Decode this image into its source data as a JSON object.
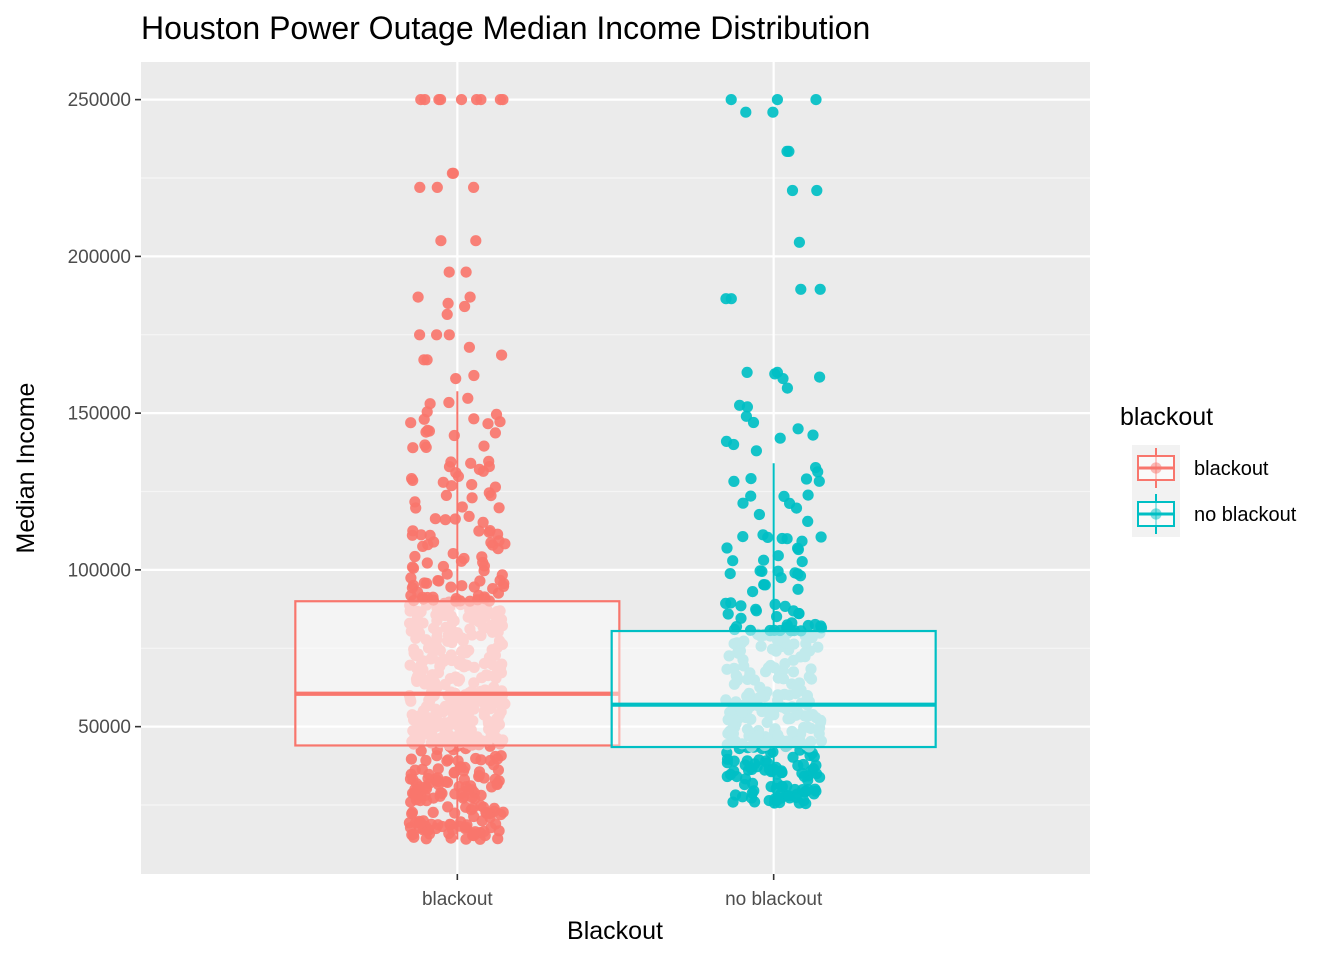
{
  "chart_data": {
    "type": "boxplot",
    "title": "Houston Power Outage Median Income Distribution",
    "xlabel": "Blackout",
    "ylabel": "Median Income",
    "ylim": [
      3000,
      262000
    ],
    "yticks": [
      50000,
      100000,
      150000,
      200000,
      250000
    ],
    "yticks_labels": [
      "50000",
      "100000",
      "150000",
      "200000",
      "250000"
    ],
    "categories": [
      "blackout",
      "no blackout"
    ],
    "legend": {
      "title": "blackout",
      "position": "right",
      "entries": [
        "blackout",
        "no blackout"
      ]
    },
    "grid": true,
    "series": [
      {
        "name": "blackout",
        "color": "#F8766D",
        "light_color": "#F9AEA9",
        "box": {
          "q1": 44000,
          "median": 60500,
          "q3": 90000,
          "whisker_low": 14000,
          "whisker_high": 157000
        },
        "outliers": [
          250000,
          250000,
          250000,
          250000,
          250000,
          250000,
          250000,
          250000,
          250000,
          226500,
          226500,
          222000,
          222000,
          222000,
          205000,
          205000,
          195000,
          195000,
          187000,
          187000,
          185000,
          184000,
          181500,
          175000,
          175000,
          175000,
          171000,
          168500,
          167000,
          167000,
          162000,
          161000
        ]
      },
      {
        "name": "no blackout",
        "color": "#00BFC4",
        "light_color": "#8ED9DC",
        "box": {
          "q1": 43500,
          "median": 57000,
          "q3": 80500,
          "whisker_low": 24000,
          "whisker_high": 134000
        },
        "outliers": [
          250000,
          250000,
          250000,
          246000,
          246000,
          233500,
          233500,
          221000,
          221000,
          204500,
          189500,
          189500,
          186500,
          186500,
          163000,
          163000,
          162500,
          161500,
          161000,
          158000,
          152500,
          152000,
          149000,
          147000,
          145000,
          143000,
          142000,
          141000,
          140000,
          138000
        ]
      }
    ]
  }
}
